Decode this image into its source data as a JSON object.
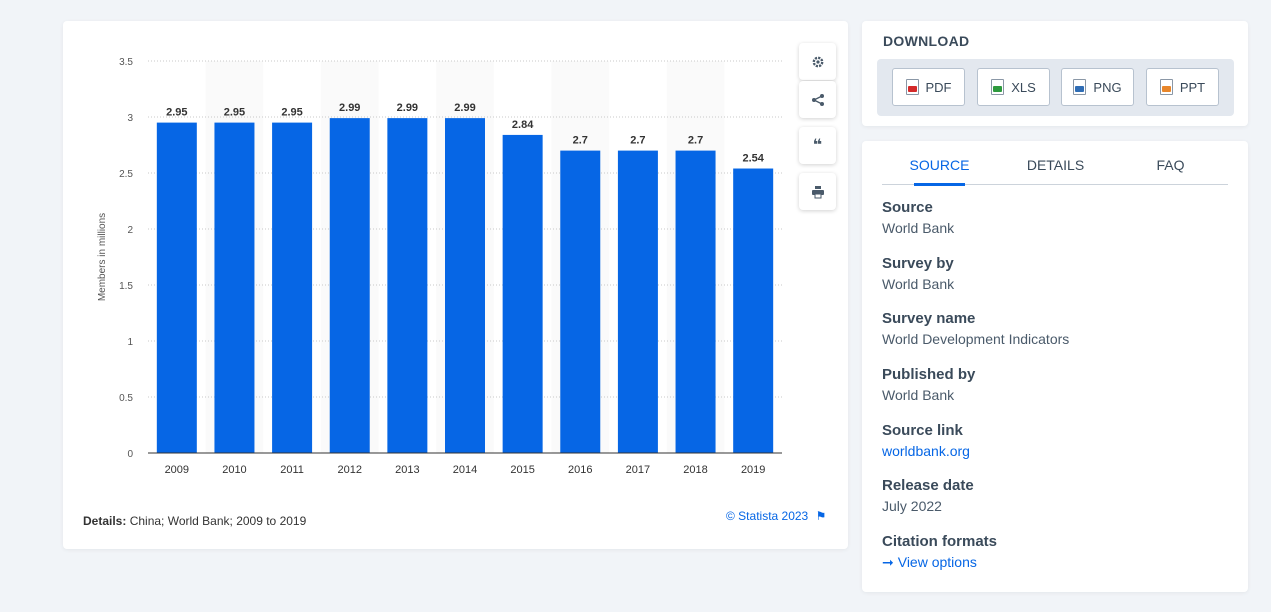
{
  "chart_data": {
    "type": "bar",
    "categories": [
      "2009",
      "2010",
      "2011",
      "2012",
      "2013",
      "2014",
      "2015",
      "2016",
      "2017",
      "2018",
      "2019"
    ],
    "values": [
      2.95,
      2.95,
      2.95,
      2.99,
      2.99,
      2.99,
      2.84,
      2.7,
      2.7,
      2.7,
      2.54
    ],
    "value_labels": [
      "2.95",
      "2.95",
      "2.95",
      "2.99",
      "2.99",
      "2.99",
      "2.84",
      "2.7",
      "2.7",
      "2.7",
      "2.54"
    ],
    "ylabel": "Members in millions",
    "ylim": [
      0,
      3.5
    ],
    "yticks": [
      "0",
      "0.5",
      "1",
      "1.5",
      "2",
      "2.5",
      "3",
      "3.5"
    ],
    "grid": true,
    "bar_color": "#0666e5"
  },
  "chart_footer": {
    "details_label": "Details:",
    "details_text": "China; World Bank; 2009 to 2019",
    "credit": "© Statista 2023"
  },
  "tools": {
    "settings_icon": "gear-icon",
    "share_icon": "share-icon",
    "cite_icon": "quote-icon",
    "print_icon": "printer-icon"
  },
  "download": {
    "title": "DOWNLOAD",
    "buttons": [
      {
        "label": "PDF",
        "color": "#d42a2a"
      },
      {
        "label": "XLS",
        "color": "#2e9a3e"
      },
      {
        "label": "PNG",
        "color": "#2f6db5"
      },
      {
        "label": "PPT",
        "color": "#e8862a"
      }
    ]
  },
  "tabs": [
    "SOURCE",
    "DETAILS",
    "FAQ"
  ],
  "source_info": [
    {
      "label": "Source",
      "value": "World Bank"
    },
    {
      "label": "Survey by",
      "value": "World Bank"
    },
    {
      "label": "Survey name",
      "value": "World Development Indicators"
    },
    {
      "label": "Published by",
      "value": "World Bank"
    },
    {
      "label": "Source link",
      "value": "worldbank.org"
    },
    {
      "label": "Release date",
      "value": "July 2022"
    },
    {
      "label": "Citation formats",
      "value": "View options"
    }
  ]
}
